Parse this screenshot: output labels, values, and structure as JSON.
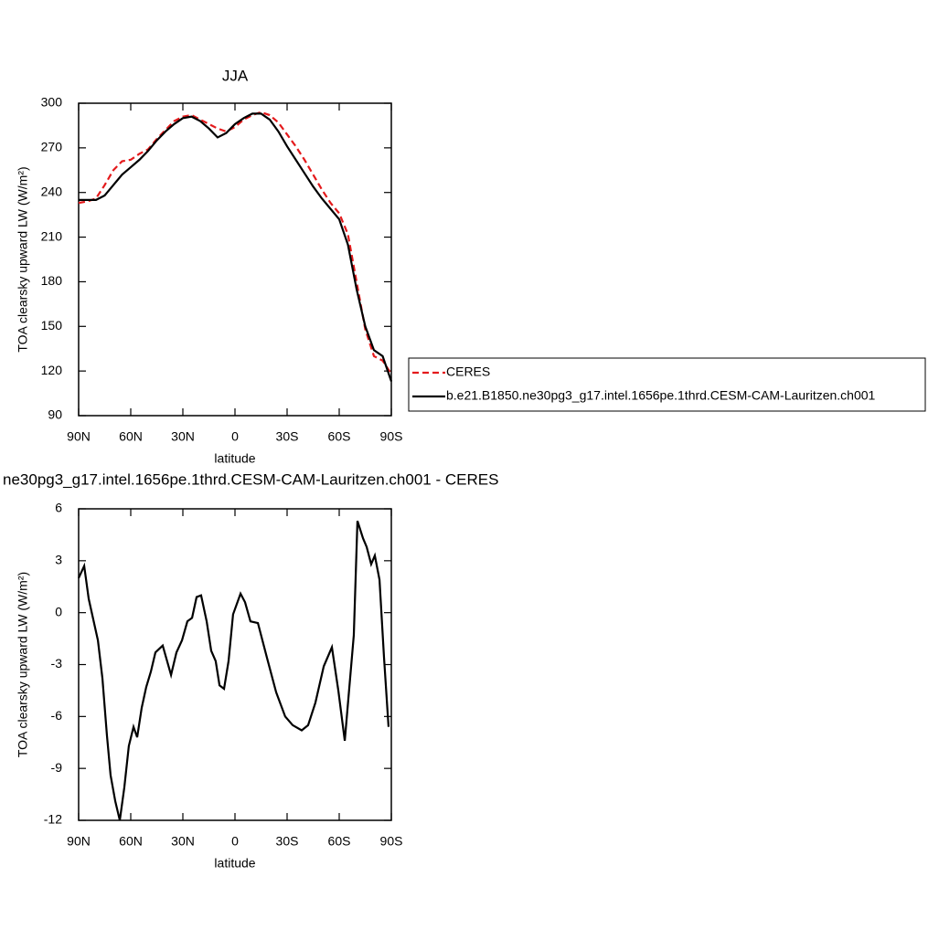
{
  "chart_data": [
    {
      "type": "line",
      "title": "JJA",
      "x_label": "latitude",
      "y_label": "TOA clearsky upward LW (W/m²)",
      "x": [
        90,
        85,
        80,
        75,
        70,
        65,
        60,
        55,
        50,
        45,
        40,
        35,
        30,
        25,
        20,
        15,
        10,
        5,
        0,
        -5,
        -10,
        -15,
        -20,
        -25,
        -30,
        -35,
        -40,
        -45,
        -50,
        -55,
        -60,
        -65,
        -70,
        -75,
        -80,
        -85,
        -90
      ],
      "series": [
        {
          "name": "CERES",
          "color": "#e41a1c",
          "dash": true,
          "values": [
            233,
            234,
            236,
            245,
            255,
            261,
            262,
            266,
            269,
            276,
            282,
            288,
            291,
            292,
            289,
            286,
            283,
            281,
            284,
            289,
            292,
            294,
            292,
            287,
            279,
            271,
            262,
            252,
            242,
            233,
            226,
            212,
            180,
            148,
            130,
            127,
            118
          ]
        },
        {
          "name": "b.e21.B1850.ne30pg3_g17.intel.1656pe.1thrd.CESM-CAM-Lauritzen.ch001",
          "color": "#000000",
          "dash": false,
          "values": [
            235,
            235,
            235,
            238,
            245,
            252,
            257,
            262,
            268,
            275,
            281,
            286,
            290,
            291,
            288,
            283,
            277,
            280,
            286,
            290,
            293,
            293,
            289,
            281,
            271,
            262,
            253,
            244,
            236,
            229,
            222,
            205,
            175,
            150,
            134,
            130,
            113
          ]
        }
      ],
      "xlim": [
        90,
        -90
      ],
      "xticks": [
        {
          "value": 90,
          "label": "90N"
        },
        {
          "value": 60,
          "label": "60N"
        },
        {
          "value": 30,
          "label": "30N"
        },
        0,
        {
          "value": -30,
          "label": "30S"
        },
        {
          "value": -60,
          "label": "60S"
        },
        {
          "value": -90,
          "label": "90S"
        }
      ],
      "ylim": [
        90,
        300
      ],
      "yticks": [
        90,
        120,
        150,
        180,
        210,
        240,
        270,
        300
      ],
      "legend": "right"
    },
    {
      "type": "line",
      "title": "ne30pg3_g17.intel.1656pe.1thrd.CESM-CAM-Lauritzen.ch001 - CERES",
      "x_label": "latitude",
      "y_label": "TOA clearsky upward LW (W/m²)",
      "x": [
        90,
        86.8,
        84.2,
        78.9,
        76.3,
        73.7,
        71.6,
        68.9,
        66.3,
        63.7,
        61.1,
        58.4,
        56.3,
        53.7,
        51.1,
        48.4,
        45.8,
        41.6,
        36.8,
        33.7,
        30.5,
        27.4,
        24.7,
        22.1,
        19.5,
        16.3,
        13.7,
        11.1,
        8.9,
        6.3,
        3.7,
        1.1,
        -3.2,
        -5.8,
        -8.9,
        -13.2,
        -18.4,
        -23.7,
        -28.9,
        -33.2,
        -38.4,
        -42.1,
        -46.3,
        -51.1,
        -55.8,
        -59.5,
        -63.2,
        -68.4,
        -70.5,
        -73.7,
        -75.8,
        -78.4,
        -80.5,
        -83.2,
        -85.8,
        -88.4
      ],
      "series": [
        {
          "color": "#000000",
          "dash": false,
          "values": [
            2.0,
            2.7,
            0.8,
            -1.6,
            -3.8,
            -7.1,
            -9.4,
            -10.9,
            -12.0,
            -10.1,
            -7.7,
            -6.6,
            -7.2,
            -5.5,
            -4.3,
            -3.4,
            -2.3,
            -1.9,
            -3.6,
            -2.3,
            -1.6,
            -0.5,
            -0.3,
            0.9,
            1.0,
            -0.5,
            -2.2,
            -2.8,
            -4.2,
            -4.4,
            -2.8,
            -0.1,
            1.1,
            0.6,
            -0.5,
            -0.6,
            -2.6,
            -4.6,
            -6.0,
            -6.5,
            -6.8,
            -6.5,
            -5.2,
            -3.1,
            -2.0,
            -4.5,
            -7.4,
            -1.3,
            5.3,
            4.3,
            3.8,
            2.8,
            3.3,
            1.9,
            -2.6,
            -6.6
          ]
        }
      ],
      "xlim": [
        90,
        -90
      ],
      "xticks": [
        {
          "value": 90,
          "label": "90N"
        },
        {
          "value": 60,
          "label": "60N"
        },
        {
          "value": 30,
          "label": "30N"
        },
        0,
        {
          "value": -30,
          "label": "30S"
        },
        {
          "value": -60,
          "label": "60S"
        },
        {
          "value": -90,
          "label": "90S"
        }
      ],
      "ylim": [
        -12,
        6
      ],
      "yticks": [
        -12,
        -9,
        -6,
        -3,
        0,
        3,
        6
      ]
    }
  ]
}
